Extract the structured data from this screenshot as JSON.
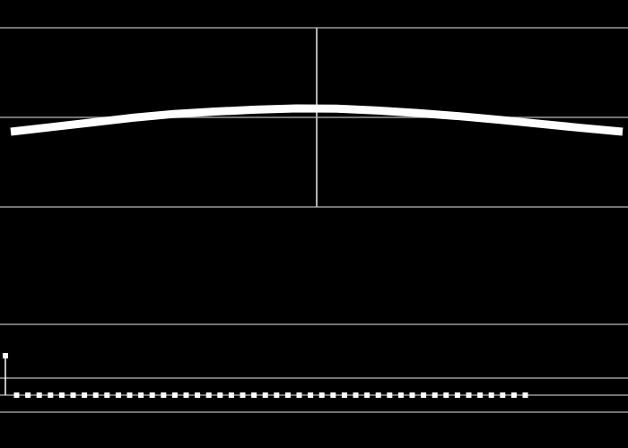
{
  "colors": {
    "background": "#000000",
    "grid_line": "#9a9a9a",
    "trace": "#ffffff",
    "cursor": "#b4b4b4",
    "marker": "#ffffff"
  },
  "upper_panel": {
    "curve_samples": [
      0.25,
      0.4,
      0.55,
      0.7,
      0.82,
      0.9,
      0.96,
      1.0,
      0.99,
      0.93,
      0.85,
      0.75,
      0.63,
      0.5,
      0.37,
      0.25
    ],
    "cursor_position": 0.5,
    "grid_divisions": 2
  },
  "lower_panel": {
    "marker_count": 47,
    "first_marker_level": 1.0,
    "other_marker_level": 0.0
  }
}
